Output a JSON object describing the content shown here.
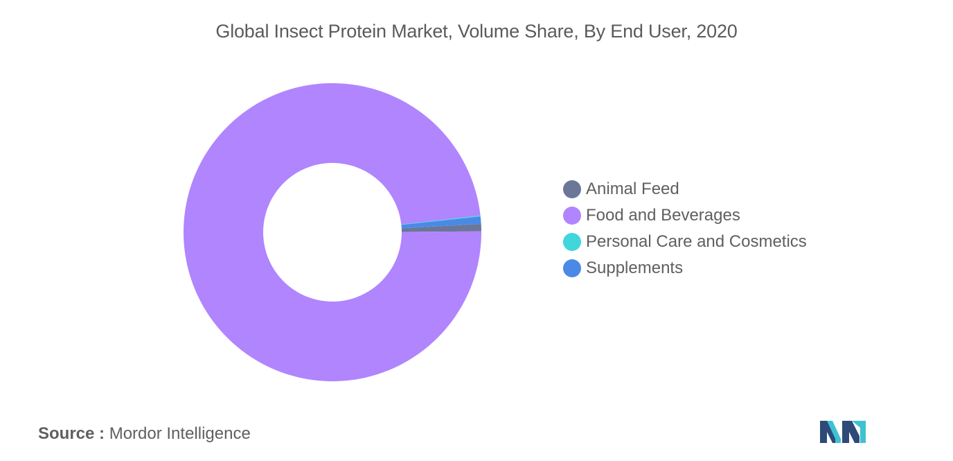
{
  "chart_data": {
    "type": "pie",
    "title": "Global Insect Protein Market, Volume Share, By End User, 2020",
    "categories": [
      "Animal Feed",
      "Food and Beverages",
      "Personal Care and Cosmetics",
      "Supplements"
    ],
    "values": [
      0.8,
      98.3,
      0.1,
      0.8
    ],
    "colors": [
      "#6b7699",
      "#b085fe",
      "#3fd6dc",
      "#4a8ae6"
    ],
    "legend_position": "right",
    "donut": true
  },
  "source": {
    "prefix": "Source :",
    "text": "Mordor Intelligence"
  },
  "logo": {
    "icon": "mordor-intelligence-logo",
    "colors": [
      "#2e4a78",
      "#3ec1d3"
    ]
  }
}
